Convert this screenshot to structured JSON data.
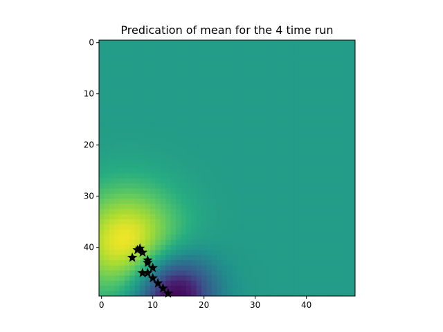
{
  "chart_data": {
    "type": "heatmap",
    "title": "Predication of mean for the 4 time run",
    "xlabel": "",
    "ylabel": "",
    "grid": false,
    "legend": "none",
    "colormap": "viridis",
    "xlim": [
      -0.5,
      49.5
    ],
    "ylim": [
      49.5,
      -0.5
    ],
    "xticks": [
      0,
      10,
      20,
      30,
      40
    ],
    "yticks": [
      0,
      10,
      20,
      30,
      40
    ],
    "grid_size": [
      50,
      50
    ],
    "background_value": 0.55,
    "features": [
      {
        "kind": "peak",
        "x": 5,
        "y": 39,
        "sigma": 7.5,
        "amplitude": 0.45
      },
      {
        "kind": "trough",
        "x": 14,
        "y": 49,
        "sigma": 5.5,
        "amplitude": -0.6
      }
    ],
    "markers": {
      "symbol": "star",
      "color": "#000000",
      "points": [
        {
          "x": 7.5,
          "y": 40.2
        },
        {
          "x": 8.0,
          "y": 41.0
        },
        {
          "x": 7.0,
          "y": 40.5
        },
        {
          "x": 6.0,
          "y": 42.0
        },
        {
          "x": 9.0,
          "y": 42.5
        },
        {
          "x": 9.0,
          "y": 43.0
        },
        {
          "x": 10.0,
          "y": 44.0
        },
        {
          "x": 8.0,
          "y": 45.0
        },
        {
          "x": 9.0,
          "y": 45.0
        },
        {
          "x": 10.0,
          "y": 46.0
        },
        {
          "x": 11.0,
          "y": 47.0
        },
        {
          "x": 12.0,
          "y": 48.0
        },
        {
          "x": 13.0,
          "y": 49.0
        }
      ]
    }
  }
}
